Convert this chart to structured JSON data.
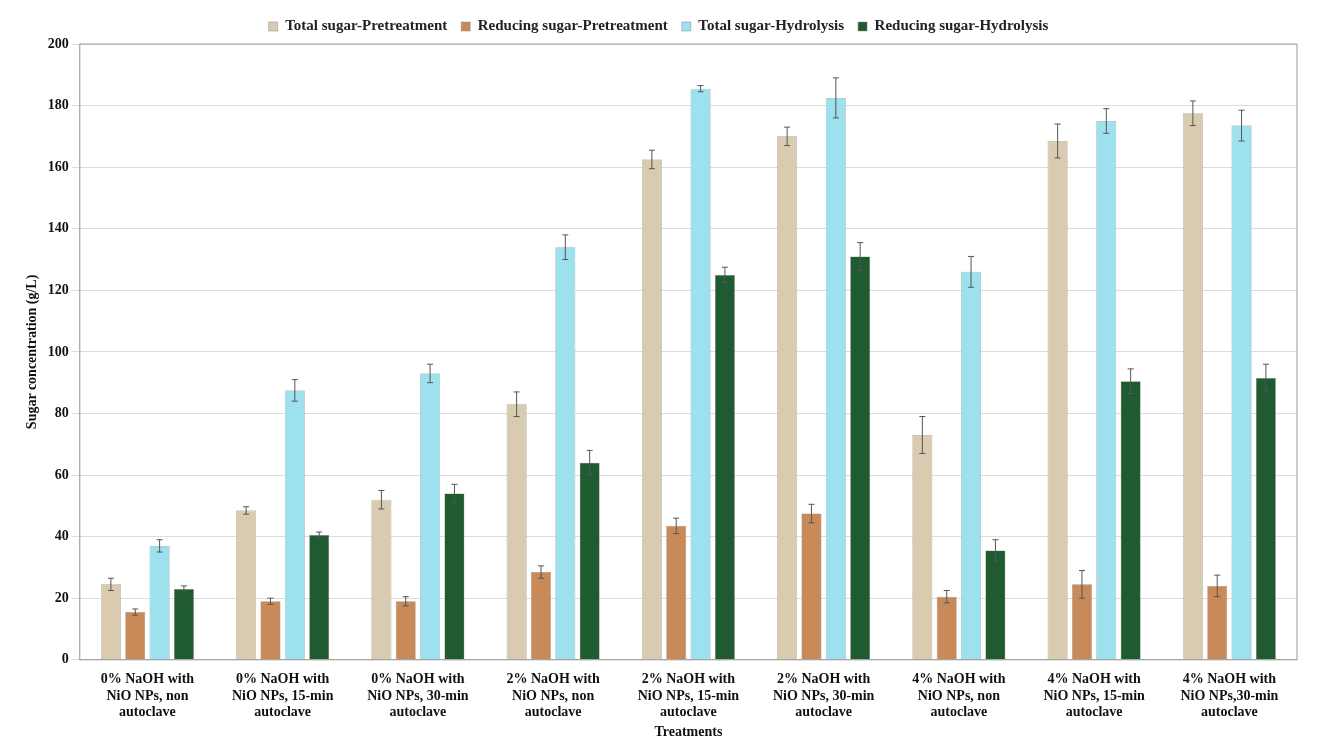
{
  "chart_data": {
    "type": "bar",
    "xlabel": "Treatments",
    "ylabel": "Sugar concentration (g/L)",
    "categories": [
      "0% NaOH with NiO NPs, non autoclave",
      "0% NaOH with NiO NPs, 15-min autoclave",
      "0% NaOH with NiO NPs, 30-min autoclave",
      "2% NaOH with NiO NPs, non autoclave",
      "2% NaOH with NiO NPs, 15-min autoclave",
      "2% NaOH with NiO NPs, 30-min autoclave",
      "4% NaOH with NiO NPs, non autoclave",
      "4% NaOH with NiO NPs, 15-min autoclave",
      "4% NaOH with NiO NPs,30-min autoclave"
    ],
    "series": [
      {
        "name": "Total sugar-Pretreatment",
        "color": "#d9cbb0",
        "values": [
          24.5,
          48.5,
          52,
          83,
          162.5,
          170,
          73,
          168.5,
          177.5
        ],
        "errors": [
          2,
          1.2,
          3,
          4,
          3,
          3,
          6,
          5.5,
          4
        ]
      },
      {
        "name": "Reducing sugar-Pretreatment",
        "color": "#c98a5a",
        "values": [
          15.5,
          19,
          19,
          28.5,
          43.5,
          47.5,
          20.5,
          24.5,
          24
        ],
        "errors": [
          1,
          1,
          1.5,
          2,
          2.5,
          3,
          2,
          4.5,
          3.5
        ]
      },
      {
        "name": "Total sugar-Hydrolysis",
        "color": "#9de0ee",
        "values": [
          37,
          87.5,
          93,
          134,
          185.5,
          182.5,
          126,
          175,
          173.5
        ],
        "errors": [
          2,
          3.5,
          3,
          4,
          1,
          6.5,
          5,
          4,
          5
        ]
      },
      {
        "name": "Reducing sugar-Hydrolysis",
        "color": "#1f5a30",
        "values": [
          23,
          40.5,
          54,
          64,
          125,
          131,
          35.5,
          90.5,
          91.5
        ],
        "errors": [
          1,
          1,
          3,
          4,
          2.5,
          4.5,
          3.5,
          4,
          4.5
        ]
      }
    ],
    "ylim": [
      0,
      200
    ],
    "yticks": [
      0,
      20,
      40,
      60,
      80,
      100,
      120,
      140,
      160,
      180,
      200
    ],
    "grid": "y",
    "legend": "top"
  }
}
